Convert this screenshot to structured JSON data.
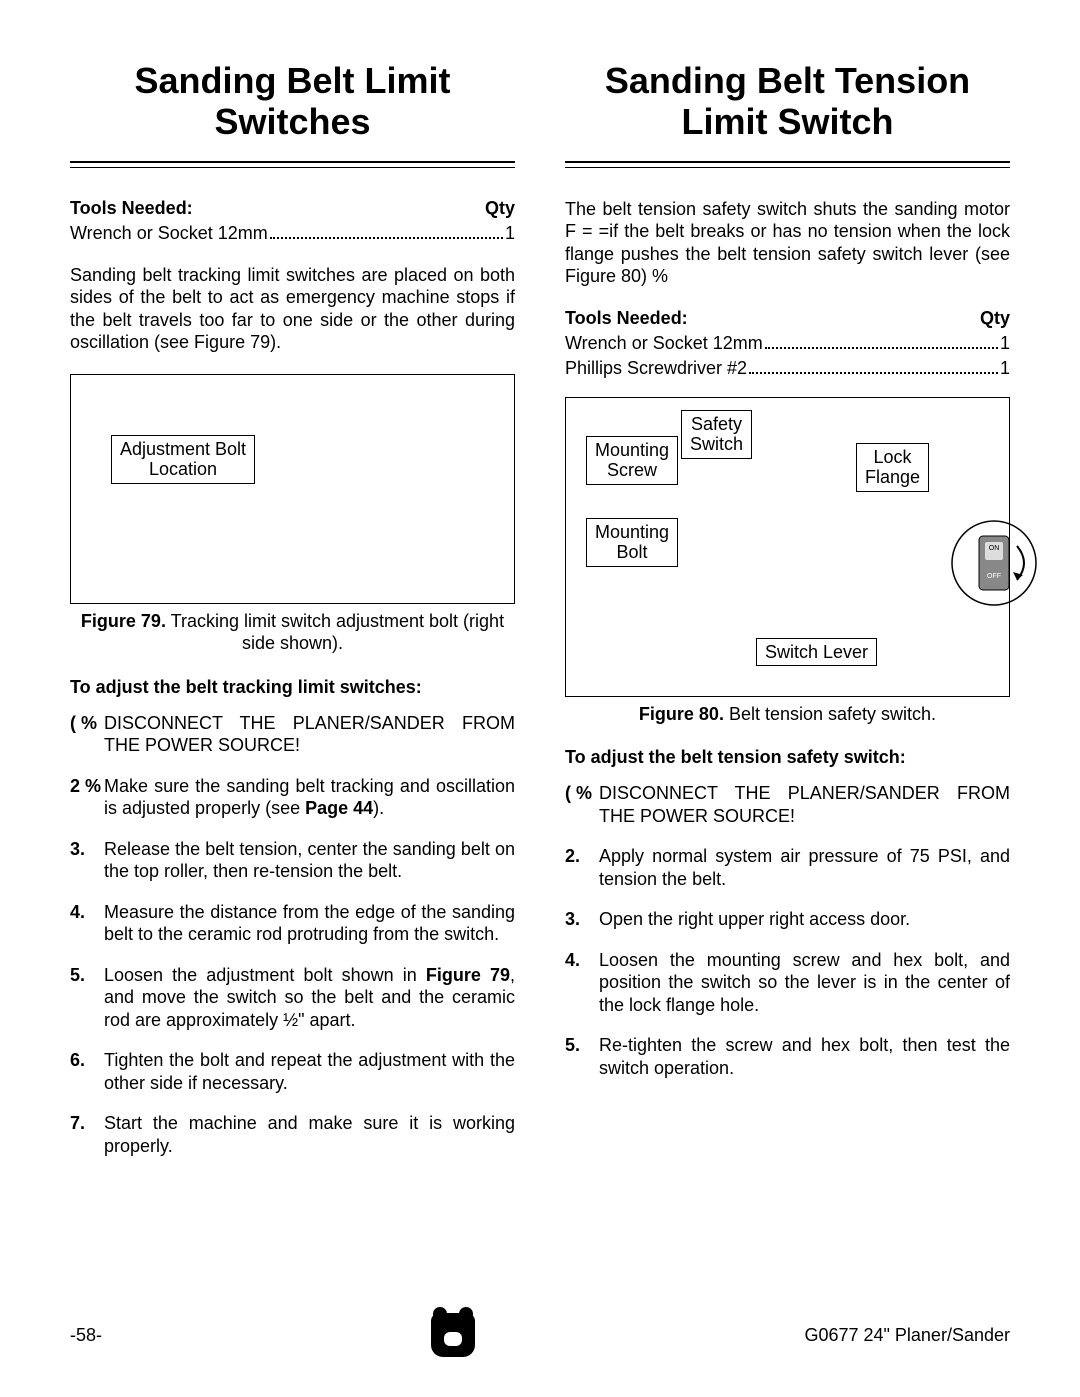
{
  "left": {
    "title": "Sanding Belt Limit Switches",
    "tools_heading": "Tools Needed:",
    "qty_heading": "Qty",
    "tools": [
      {
        "name": "Wrench or Socket 12mm",
        "qty": "1"
      }
    ],
    "intro": "Sanding belt tracking limit switches are placed on both sides of the belt to act as emergency machine stops if the belt travels too far to one side or the other during oscillation (see Figure 79).",
    "fig_label": "Adjustment Bolt\nLocation",
    "fig_caption_bold": "Figure 79.",
    "fig_caption_rest": " Tracking limit switch adjustment bolt (right side shown).",
    "proc_head": "To adjust the belt tracking limit switches:",
    "steps": [
      {
        "n": "( %",
        "t": "DISCONNECT THE PLANER/SANDER FROM THE POWER SOURCE!"
      },
      {
        "n": "2 %",
        "t": "Make sure the sanding belt tracking and oscillation is adjusted properly (see Page 44)."
      },
      {
        "n": "3.",
        "t": "Release the belt tension, center the sanding belt on the top roller, then re-tension the belt."
      },
      {
        "n": "4.",
        "t": "Measure the distance from the edge of the sanding belt to the ceramic rod protruding from the switch."
      },
      {
        "n": "5.",
        "t": "Loosen the adjustment bolt shown in Figure 79, and move the switch so the belt and the ceramic rod are approximately ½\" apart."
      },
      {
        "n": "6.",
        "t": "Tighten the bolt and repeat the adjustment with the other side if necessary."
      },
      {
        "n": "7.",
        "t": "Start the machine and make sure it is working properly."
      }
    ]
  },
  "right": {
    "title": "Sanding Belt Tension Limit Switch",
    "intro": "The belt tension safety switch shuts the sanding motor  F = =if the belt breaks or has no tension when the lock flange pushes the belt tension safety switch lever (see Figure 80) %",
    "tools_heading": "Tools Needed:",
    "qty_heading": "Qty",
    "tools": [
      {
        "name": "Wrench or Socket 12mm",
        "qty": "1"
      },
      {
        "name": "Phillips Screwdriver #2",
        "qty": "1"
      }
    ],
    "fig_labels": {
      "safety_switch": "Safety\nSwitch",
      "mounting_screw": "Mounting\nScrew",
      "lock_flange": "Lock\nFlange",
      "mounting_bolt": "Mounting\nBolt",
      "switch_lever": "Switch Lever"
    },
    "fig_caption_bold": "Figure 80.",
    "fig_caption_rest": " Belt tension safety switch.",
    "proc_head": "To adjust the belt tension safety switch:",
    "steps": [
      {
        "n": "( %",
        "t": "DISCONNECT THE PLANER/SANDER FROM THE POWER SOURCE!"
      },
      {
        "n": "2.",
        "t": "Apply normal system air pressure of 75 PSI, and tension the belt."
      },
      {
        "n": "3.",
        "t": "Open the right upper right access door."
      },
      {
        "n": "4.",
        "t": "Loosen the mounting screw and hex bolt, and position the switch so the lever is in the center of the lock flange hole."
      },
      {
        "n": "5.",
        "t": "Re-tighten the screw and hex bolt, then test the switch operation."
      }
    ]
  },
  "footer": {
    "page": "-58-",
    "model": "G0677 24\" Planer/Sander"
  },
  "switch_labels": {
    "on": "ON",
    "off": "OFF"
  }
}
